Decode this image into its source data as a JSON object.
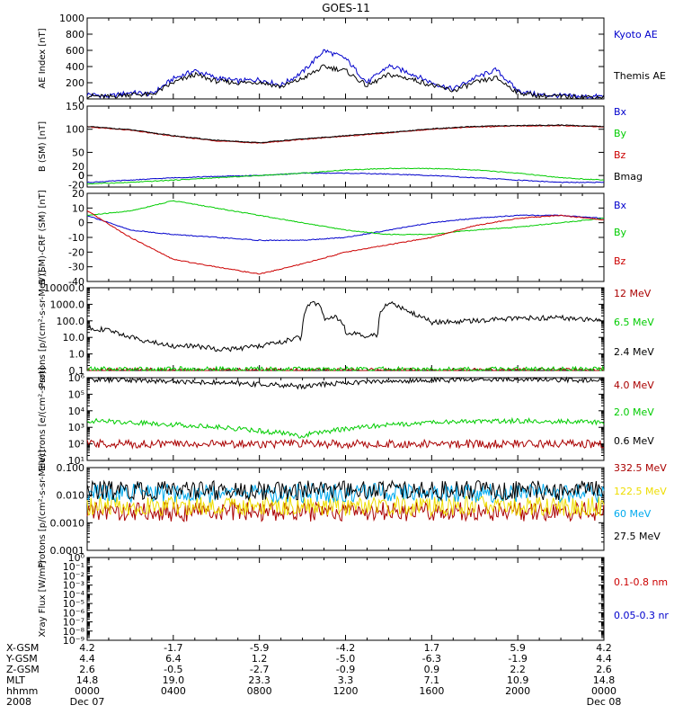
{
  "figure": {
    "title": "GOES-11"
  },
  "chart_data": [
    {
      "type": "line",
      "panel": "ae",
      "ylabel": "AE Index [nT]",
      "ylim": [
        0,
        1000
      ],
      "yticks": [
        "0",
        "200",
        "400",
        "600",
        "800",
        "1000"
      ],
      "series": [
        {
          "name": "Kyoto AE",
          "color": "#0000cc",
          "x": [
            0,
            1,
            2,
            3,
            4,
            5,
            6,
            7,
            8,
            9,
            10,
            11,
            12,
            13,
            14,
            15,
            16,
            17,
            18,
            19,
            20,
            21,
            22,
            23,
            24
          ],
          "values": [
            60,
            30,
            80,
            60,
            250,
            350,
            260,
            220,
            240,
            170,
            330,
            600,
            500,
            200,
            410,
            320,
            200,
            120,
            260,
            360,
            100,
            50,
            40,
            30,
            30
          ]
        },
        {
          "name": "Themis AE",
          "color": "#000000",
          "x": [
            0,
            1,
            2,
            3,
            4,
            5,
            6,
            7,
            8,
            9,
            10,
            11,
            12,
            13,
            14,
            15,
            16,
            17,
            18,
            19,
            20,
            21,
            22,
            23,
            24
          ],
          "values": [
            40,
            25,
            60,
            50,
            200,
            300,
            220,
            200,
            210,
            150,
            250,
            400,
            350,
            160,
            300,
            250,
            170,
            100,
            200,
            260,
            80,
            40,
            30,
            25,
            25
          ]
        }
      ],
      "legend": [
        "Kyoto AE",
        "Themis AE"
      ]
    },
    {
      "type": "line",
      "panel": "b_sm",
      "ylabel": "B (SM) [nT]",
      "ylim": [
        -25,
        150
      ],
      "yticks": [
        "0",
        "50",
        "100",
        "150"
      ],
      "extra_ticks": [
        "-20",
        "0",
        "20"
      ],
      "series": [
        {
          "name": "Bx",
          "color": "#0000cc",
          "x": [
            0,
            2,
            4,
            6,
            8,
            10,
            12,
            14,
            16,
            18,
            20,
            22,
            24
          ],
          "values": [
            -15,
            -10,
            -5,
            -2,
            0,
            5,
            5,
            3,
            0,
            -5,
            -10,
            -15,
            -15
          ]
        },
        {
          "name": "By",
          "color": "#00cc00",
          "x": [
            0,
            2,
            4,
            6,
            8,
            10,
            12,
            14,
            16,
            18,
            20,
            22,
            24
          ],
          "values": [
            -18,
            -15,
            -10,
            -5,
            0,
            5,
            12,
            15,
            15,
            12,
            5,
            -5,
            -10
          ]
        },
        {
          "name": "Bz",
          "color": "#cc0000",
          "x": [
            0,
            2,
            4,
            6,
            8,
            10,
            12,
            14,
            16,
            18,
            20,
            22,
            24
          ],
          "values": [
            105,
            98,
            85,
            75,
            70,
            78,
            85,
            92,
            100,
            105,
            107,
            108,
            105
          ]
        },
        {
          "name": "Bmag",
          "color": "#000000",
          "x": [
            0,
            2,
            4,
            6,
            8,
            10,
            12,
            14,
            16,
            18,
            20,
            22,
            24
          ],
          "values": [
            106,
            99,
            86,
            76,
            71,
            79,
            86,
            93,
            101,
            106,
            108,
            109,
            106
          ]
        }
      ],
      "legend": [
        "Bx",
        "By",
        "Bz",
        "Bmag"
      ]
    },
    {
      "type": "line",
      "panel": "b_residual",
      "ylabel": "B (SM)-CRF (SM) [nT]",
      "ylim": [
        -40,
        20
      ],
      "yticks": [
        "-40",
        "-30",
        "-20",
        "-10",
        "0",
        "10",
        "20"
      ],
      "series": [
        {
          "name": "Bx",
          "color": "#0000cc",
          "x": [
            0,
            2,
            4,
            6,
            8,
            10,
            12,
            14,
            16,
            18,
            20,
            22,
            24
          ],
          "values": [
            5,
            -5,
            -8,
            -10,
            -12,
            -12,
            -10,
            -5,
            0,
            3,
            5,
            5,
            3
          ]
        },
        {
          "name": "By",
          "color": "#00cc00",
          "x": [
            0,
            2,
            4,
            6,
            8,
            10,
            12,
            14,
            16,
            18,
            20,
            22,
            24
          ],
          "values": [
            5,
            8,
            15,
            10,
            5,
            0,
            -5,
            -8,
            -8,
            -5,
            -3,
            0,
            3
          ]
        },
        {
          "name": "Bz",
          "color": "#cc0000",
          "x": [
            0,
            2,
            4,
            6,
            8,
            10,
            12,
            14,
            16,
            18,
            20,
            22,
            24
          ],
          "values": [
            8,
            -10,
            -25,
            -30,
            -35,
            -28,
            -20,
            -15,
            -10,
            -2,
            3,
            5,
            2
          ]
        }
      ],
      "legend": [
        "Bx",
        "By",
        "Bz"
      ]
    },
    {
      "type": "line",
      "panel": "protons_low",
      "scale": "log",
      "ylabel": "Protons [p/(cm²-s-sr-MeV)]",
      "ylim": [
        0.1,
        10000
      ],
      "yticks": [
        "0.1",
        "1.0",
        "10.0",
        "100.0",
        "1000.0",
        "10000.0"
      ],
      "series": [
        {
          "name": "12 MeV",
          "color": "#aa0000",
          "x": [
            0,
            24
          ],
          "values": [
            0.1,
            0.1
          ]
        },
        {
          "name": "6.5 MeV",
          "color": "#00cc00",
          "x": [
            0,
            24
          ],
          "values": [
            0.12,
            0.12
          ]
        },
        {
          "name": "2.4 MeV",
          "color": "#000000",
          "x": [
            0,
            1,
            2,
            3,
            4,
            5,
            6,
            7,
            8,
            9,
            10,
            10.5,
            11,
            11.5,
            12,
            13,
            13.5,
            14,
            15,
            16,
            18,
            20,
            22,
            24
          ],
          "values": [
            40,
            25,
            10,
            5,
            3,
            3,
            2,
            2,
            3,
            5,
            10,
            1500,
            150,
            200,
            20,
            10,
            15,
            1200,
            300,
            80,
            100,
            150,
            150,
            100
          ]
        }
      ],
      "legend": [
        "12 MeV",
        "6.5 MeV",
        "2.4 MeV"
      ]
    },
    {
      "type": "line",
      "panel": "electrons",
      "scale": "log",
      "ylabel": "Electrons [e/(cm²-s-sr)]",
      "ylim": [
        10,
        1000000
      ],
      "yticks": [
        "10¹",
        "10²",
        "10³",
        "10⁴",
        "10⁵",
        "10⁶"
      ],
      "series": [
        {
          "name": "4.0 MeV",
          "color": "#aa0000",
          "x": [
            0,
            24
          ],
          "values": [
            100,
            100
          ]
        },
        {
          "name": "2.0 MeV",
          "color": "#00cc00",
          "x": [
            0,
            4,
            8,
            10,
            12,
            16,
            20,
            24
          ],
          "values": [
            2500,
            1500,
            600,
            300,
            800,
            2000,
            2500,
            2000
          ]
        },
        {
          "name": "0.6 MeV",
          "color": "#000000",
          "x": [
            0,
            4,
            8,
            10,
            12,
            16,
            20,
            24
          ],
          "values": [
            800000,
            600000,
            400000,
            300000,
            500000,
            700000,
            800000,
            700000
          ]
        }
      ],
      "legend": [
        "4.0 MeV",
        "2.0 MeV",
        "0.6 MeV"
      ]
    },
    {
      "type": "line",
      "panel": "protons_high",
      "scale": "log",
      "ylabel": "Protons [p/(cm²-s-sr-MeV)]",
      "ylim": [
        0.0001,
        0.1
      ],
      "yticks": [
        "0.0001",
        "0.0010",
        "0.010",
        "0.100"
      ],
      "series": [
        {
          "name": "332.5 MeV",
          "color": "#aa0000",
          "x": [
            0,
            24
          ],
          "values": [
            0.0025,
            0.0025
          ]
        },
        {
          "name": "122.5 MeV",
          "color": "#eedd00",
          "x": [
            0,
            24
          ],
          "values": [
            0.004,
            0.004
          ]
        },
        {
          "name": "60 MeV",
          "color": "#00aaee",
          "x": [
            0,
            24
          ],
          "values": [
            0.012,
            0.012
          ]
        },
        {
          "name": "27.5 MeV",
          "color": "#000000",
          "x": [
            0,
            24
          ],
          "values": [
            0.015,
            0.015
          ]
        }
      ],
      "legend": [
        "332.5 MeV",
        "122.5 MeV",
        "60 MeV",
        "27.5 MeV"
      ]
    },
    {
      "type": "line",
      "panel": "xray",
      "scale": "log",
      "ylabel": "Xray Flux [W/m²]",
      "ylim": [
        1e-09,
        1
      ],
      "yticks": [
        "10⁻⁹",
        "10⁻⁸",
        "10⁻⁷",
        "10⁻⁶",
        "10⁻⁵",
        "10⁻⁴",
        "10⁻³",
        "10⁻²",
        "10⁻¹",
        "10⁰"
      ],
      "series": [],
      "legend": [
        "0.1-0.8 nm",
        "0.05-0.3 nr"
      ]
    }
  ],
  "ephemeris": {
    "row_labels": [
      "X-GSM",
      "Y-GSM",
      "Z-GSM",
      "MLT",
      "hhmm",
      "2008"
    ],
    "columns": [
      [
        "4.2",
        "4.4",
        "2.6",
        "14.8",
        "0000",
        "Dec 07"
      ],
      [
        "-1.7",
        "6.4",
        "-0.5",
        "19.0",
        "0400",
        ""
      ],
      [
        "-5.9",
        "1.2",
        "-2.7",
        "23.3",
        "0800",
        ""
      ],
      [
        "-4.2",
        "-5.0",
        "-0.9",
        "3.3",
        "1200",
        ""
      ],
      [
        "1.7",
        "-6.3",
        "0.9",
        "7.1",
        "1600",
        ""
      ],
      [
        "5.9",
        "-1.9",
        "2.2",
        "10.9",
        "2000",
        ""
      ],
      [
        "4.2",
        "4.4",
        "2.6",
        "14.8",
        "0000",
        "Dec 08"
      ]
    ]
  }
}
